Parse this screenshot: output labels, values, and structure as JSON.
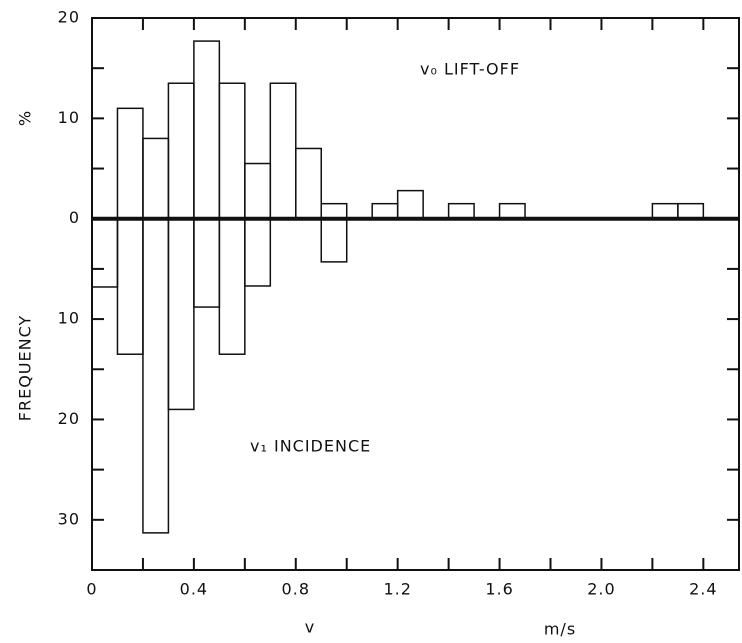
{
  "chart_data": {
    "type": "histogram",
    "bins": [
      0,
      0.1,
      0.2,
      0.3,
      0.4,
      0.5,
      0.6,
      0.7,
      0.8,
      0.9,
      1.0,
      1.1,
      1.2,
      1.3,
      1.4,
      1.5,
      1.6,
      1.7,
      1.8,
      1.9,
      2.0,
      2.1,
      2.2,
      2.3,
      2.4,
      2.5
    ],
    "series": [
      {
        "name": "v₀  LIFT-OFF",
        "color": "#111111",
        "values": [
          0,
          11,
          8,
          13.5,
          17.7,
          13.5,
          5.5,
          13.5,
          7,
          1.5,
          0,
          1.5,
          2.8,
          0,
          1.5,
          0,
          1.5,
          0,
          0,
          0,
          0,
          0,
          1.5,
          1.5,
          0
        ]
      },
      {
        "name": "v₁  INCIDENCE",
        "color": "#111111",
        "values": [
          -6.8,
          -13.5,
          -31.3,
          -19,
          -8.8,
          -13.5,
          -6.7,
          0,
          0,
          -4.3,
          0,
          0,
          0,
          0,
          0,
          0,
          0,
          0,
          0,
          0,
          0,
          0,
          0,
          0,
          0
        ]
      }
    ],
    "xlim": [
      0,
      2.54
    ],
    "ylim": [
      -35,
      20
    ],
    "xticks": [
      0,
      0.4,
      0.8,
      1.2,
      1.6,
      {
        "value": 2,
        "label": "2.0"
      },
      2.4
    ],
    "yticks": [
      20,
      10,
      0,
      {
        "value": -10,
        "label": "10"
      },
      {
        "value": -20,
        "label": "20"
      },
      {
        "value": -30,
        "label": "30"
      }
    ],
    "x_label": "v",
    "x_unit": "m/s",
    "y_label": "FREQUENCY",
    "y_unit": "%"
  }
}
